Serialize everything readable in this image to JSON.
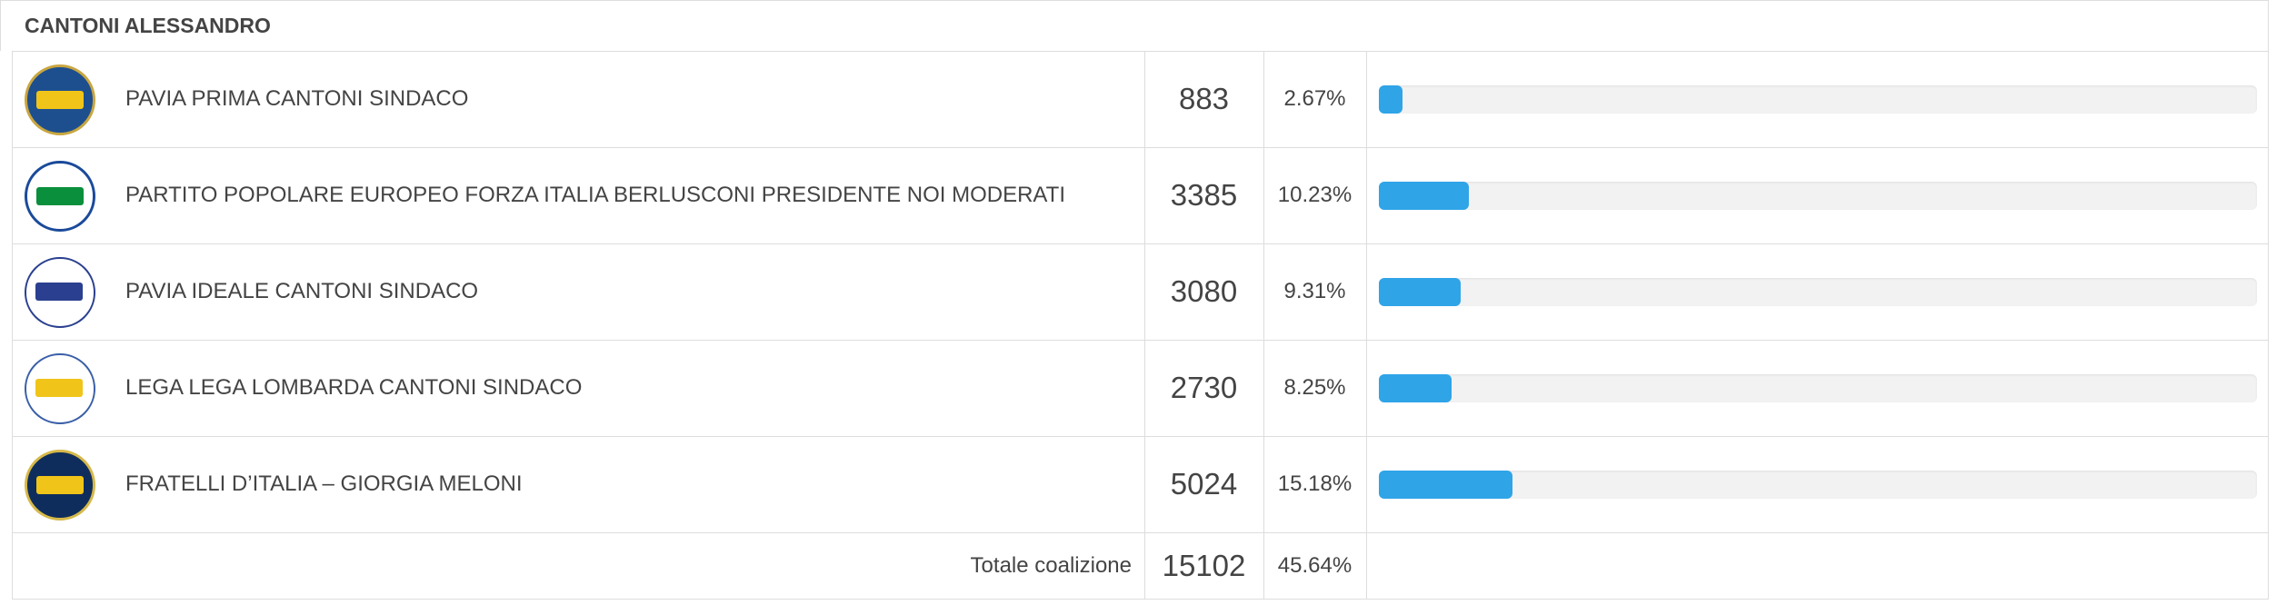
{
  "header": {
    "title": "CANTONI ALESSANDRO"
  },
  "table": {
    "rows": [
      {
        "name": "PAVIA PRIMA CANTONI SINDACO",
        "votes": 883,
        "percent": 2.67,
        "percent_label": "2.67%"
      },
      {
        "name": "PARTITO POPOLARE EUROPEO FORZA ITALIA BERLUSCONI PRESIDENTE NOI MODERATI",
        "votes": 3385,
        "percent": 10.23,
        "percent_label": "10.23%"
      },
      {
        "name": "PAVIA IDEALE CANTONI SINDACO",
        "votes": 3080,
        "percent": 9.31,
        "percent_label": "9.31%"
      },
      {
        "name": "LEGA LEGA LOMBARDA CANTONI SINDACO",
        "votes": 2730,
        "percent": 8.25,
        "percent_label": "8.25%"
      },
      {
        "name": "FRATELLI D’ITALIA – GIORGIA MELONI",
        "votes": 5024,
        "percent": 15.18,
        "percent_label": "15.18%"
      }
    ],
    "total": {
      "label": "Totale coalizione",
      "votes": 15102,
      "percent_label": "45.64%"
    }
  }
}
